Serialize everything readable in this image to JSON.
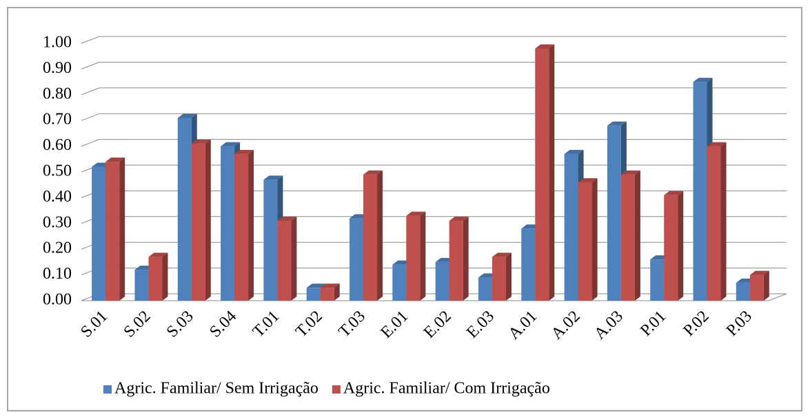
{
  "chart_data": {
    "type": "bar",
    "categories": [
      "S.01",
      "S.02",
      "S.03",
      "S.04",
      "T.01",
      "T.02",
      "T.03",
      "E.01",
      "E.02",
      "E.03",
      "A.01",
      "A.02",
      "A.03",
      "P.01",
      "P.02",
      "P.03"
    ],
    "series": [
      {
        "name": "Agric. Familiar/ Sem Irrigação",
        "color": "#4f81bd",
        "values": [
          0.52,
          0.12,
          0.71,
          0.6,
          0.47,
          0.05,
          0.32,
          0.14,
          0.15,
          0.09,
          0.28,
          0.57,
          0.68,
          0.16,
          0.85,
          0.07
        ]
      },
      {
        "name": "Agric. Familiar/ Com Irrigação",
        "color": "#c0504d",
        "values": [
          0.54,
          0.17,
          0.61,
          0.57,
          0.31,
          0.05,
          0.49,
          0.33,
          0.31,
          0.17,
          0.98,
          0.46,
          0.49,
          0.41,
          0.6,
          0.1
        ]
      }
    ],
    "ylim": [
      0,
      1
    ],
    "yticks": [
      {
        "value": 0,
        "label": "0.00"
      },
      {
        "value": 0.1,
        "label": "0.10"
      },
      {
        "value": 0.2,
        "label": "0.20"
      },
      {
        "value": 0.3,
        "label": "0.30"
      },
      {
        "value": 0.4,
        "label": "0.40"
      },
      {
        "value": 0.5,
        "label": "0.50"
      },
      {
        "value": 0.6,
        "label": "0.60"
      },
      {
        "value": 0.7,
        "label": "0.70"
      },
      {
        "value": 0.8,
        "label": "0.80"
      },
      {
        "value": 0.9,
        "label": "0.90"
      },
      {
        "value": 1,
        "label": "1.00"
      }
    ],
    "grid": true,
    "legend": "bottom"
  }
}
